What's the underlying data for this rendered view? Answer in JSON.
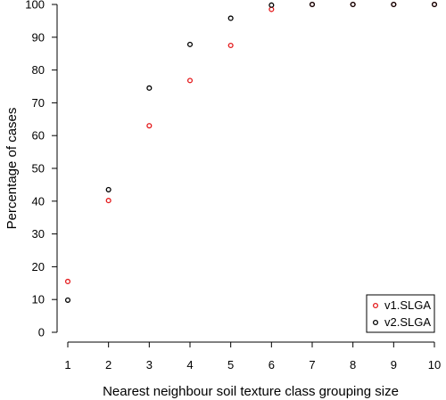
{
  "chart_data": {
    "type": "scatter",
    "xlabel": "Nearest neighbour soil texture class grouping size",
    "ylabel": "Percentage of cases",
    "x": [
      1,
      2,
      3,
      4,
      5,
      6,
      7,
      8,
      9,
      10
    ],
    "xlim": [
      1,
      10
    ],
    "ylim": [
      0,
      100
    ],
    "x_ticks": [
      "1",
      "2",
      "3",
      "4",
      "5",
      "6",
      "7",
      "8",
      "9",
      "10"
    ],
    "y_ticks": [
      "0",
      "10",
      "20",
      "30",
      "40",
      "50",
      "60",
      "70",
      "80",
      "90",
      "100"
    ],
    "grid": false,
    "legend_position": "bottom-right",
    "series": [
      {
        "name": "v1.SLGA",
        "color": "#e41a1c",
        "marker": "open-circle",
        "values": [
          15.5,
          40.2,
          63.0,
          76.8,
          87.5,
          98.5,
          100,
          100,
          100,
          100
        ]
      },
      {
        "name": "v2.SLGA",
        "color": "#000000",
        "marker": "open-circle",
        "values": [
          9.8,
          43.5,
          74.5,
          87.8,
          95.8,
          99.8,
          100,
          100,
          100,
          100
        ]
      }
    ]
  }
}
